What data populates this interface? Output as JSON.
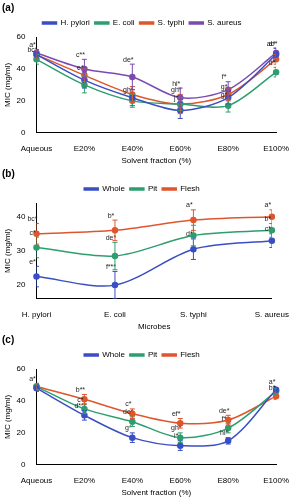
{
  "chart_data": [
    {
      "type": "line",
      "title": "(a)",
      "x_label": "Solvent fraction (%)",
      "y_label": "MIC (mg/ml)",
      "categories": [
        "Aqueous",
        "E20%",
        "E40%",
        "E60%",
        "E80%",
        "E100%"
      ],
      "ylim": [
        0,
        60
      ],
      "yticks": [
        0,
        20,
        40,
        60
      ],
      "grid": false,
      "legend": "top",
      "marker": "circle",
      "series": [
        {
          "name": "H. pylori",
          "color": "#3a4fc4",
          "values": [
            49,
            33,
            22,
            14,
            22,
            49
          ],
          "errors": [
            3,
            5,
            5,
            5,
            4,
            4
          ],
          "point_labels": [
            null,
            "e*",
            null,
            "j*",
            "g*",
            "ab*"
          ]
        },
        {
          "name": "E. coli",
          "color": "#2e9e6f",
          "values": [
            46,
            30,
            20,
            18,
            17,
            38
          ],
          "errors": [
            3,
            5,
            4,
            4,
            4,
            3
          ],
          "point_labels": [
            "bc*",
            null,
            "gh*",
            null,
            "g*",
            "d*"
          ]
        },
        {
          "name": "S. typhi",
          "color": "#e0562c",
          "values": [
            49,
            36,
            24,
            18,
            24,
            46
          ],
          "errors": [
            3,
            4,
            5,
            6,
            4,
            3
          ],
          "point_labels": [
            null,
            null,
            null,
            "gh*",
            null,
            null
          ]
        },
        {
          "name": "S. aureus",
          "color": "#7a4bb0",
          "values": [
            50,
            40,
            35,
            22,
            27,
            50
          ],
          "errors": [
            2,
            6,
            8,
            6,
            5,
            3
          ],
          "point_labels": [
            "a*",
            "c**",
            "de*",
            "hi*",
            "f*",
            "a*"
          ]
        }
      ]
    },
    {
      "type": "line",
      "title": "(b)",
      "x_label": "Microbes",
      "y_label": "MIC (mg/ml)",
      "categories": [
        "H. pylori",
        "E. coli",
        "S. typhi",
        "S. aureus"
      ],
      "ylim": [
        16,
        44
      ],
      "yticks": [
        20,
        30,
        40
      ],
      "grid": false,
      "legend": "top",
      "marker": "circle",
      "series": [
        {
          "name": "Whole",
          "color": "#3a4fc4",
          "values": [
            22.5,
            20,
            30.5,
            33
          ],
          "errors": [
            3,
            4,
            3,
            2
          ],
          "point_labels": [
            "e*",
            "f***",
            "d*",
            "c*"
          ]
        },
        {
          "name": "Pit",
          "color": "#2e9e6f",
          "values": [
            31,
            28.5,
            34.5,
            36
          ],
          "errors": [
            3,
            4,
            3,
            2
          ],
          "point_labels": [
            "c*",
            "de*",
            null,
            "b*"
          ]
        },
        {
          "name": "Flesh",
          "color": "#e0562c",
          "values": [
            35,
            36,
            39,
            40
          ],
          "errors": [
            3,
            3,
            3,
            2
          ],
          "point_labels": [
            "bc*",
            "b*",
            "a*",
            "a*"
          ]
        }
      ]
    },
    {
      "type": "line",
      "title": "(c)",
      "x_label": "Solvent fraction (%)",
      "y_label": "MIC (mg/ml)",
      "categories": [
        "Aqueous",
        "E20%",
        "E40%",
        "E60%",
        "E80%",
        "E100%"
      ],
      "ylim": [
        0,
        60
      ],
      "yticks": [
        0,
        20,
        40,
        60
      ],
      "grid": false,
      "legend": "top",
      "marker": "circle",
      "series": [
        {
          "name": "Whole",
          "color": "#3a4fc4",
          "values": [
            48,
            31,
            17,
            12,
            15,
            47
          ],
          "errors": [
            2,
            3,
            3,
            3,
            2,
            2
          ],
          "point_labels": [
            null,
            "d***",
            "g*",
            "i*",
            "hi*",
            "a*"
          ]
        },
        {
          "name": "Pit",
          "color": "#2e9e6f",
          "values": [
            49,
            35,
            27,
            17,
            23,
            46
          ],
          "errors": [
            2,
            3,
            3,
            3,
            3,
            2
          ],
          "point_labels": [
            null,
            "c*",
            "de*",
            "gh*",
            "f*",
            null
          ]
        },
        {
          "name": "Flesh",
          "color": "#e0562c",
          "values": [
            49,
            41,
            32,
            26,
            28,
            43
          ],
          "errors": [
            2,
            3,
            3,
            3,
            3,
            2
          ],
          "point_labels": [
            "a*",
            "b**",
            "c*",
            "ef*",
            "de*",
            "b*"
          ]
        }
      ]
    }
  ]
}
